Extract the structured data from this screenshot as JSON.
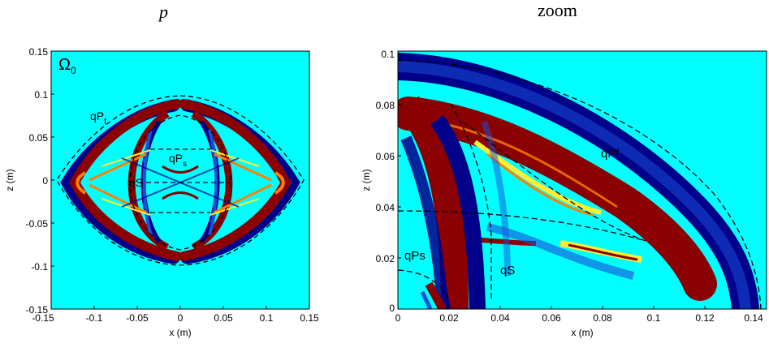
{
  "titles": {
    "left": "p",
    "right": "zoom"
  },
  "left_panel": {
    "domain_label": "Ω",
    "domain_sub": "0",
    "xlabel": "x (m)",
    "ylabel": "z (m)",
    "xticks": [
      "-0.15",
      "-0.1",
      "-0.05",
      "0",
      "0.05",
      "0.1",
      "0.15"
    ],
    "yticks": [
      "0.15",
      "0.1",
      "0.05",
      "0",
      "-0.05",
      "-0.1",
      "-0.15"
    ],
    "annotations": {
      "qpf": {
        "main": "qP",
        "sub": "f"
      },
      "qps": {
        "main": "qP",
        "sub": "s"
      },
      "qs": {
        "main": "qS"
      }
    }
  },
  "right_panel": {
    "xlabel": "x (m)",
    "ylabel": "z (m)",
    "xticks": [
      "0",
      "0.02",
      "0.04",
      "0.06",
      "0.08",
      "0.1",
      "0.12",
      "0.14"
    ],
    "yticks": [
      "0.1",
      "0.08",
      "0.06",
      "0.04",
      "0.02",
      "0"
    ],
    "annotations": {
      "qpf": "qPf",
      "qps": "qPs",
      "qs": "qS"
    }
  },
  "colors": {
    "background": "#00ffff",
    "dark_red": "#8b0000",
    "dark_blue": "#00008b",
    "blue": "#1a4fd8",
    "yellow": "#ffee33",
    "orange": "#ff7f00"
  }
}
